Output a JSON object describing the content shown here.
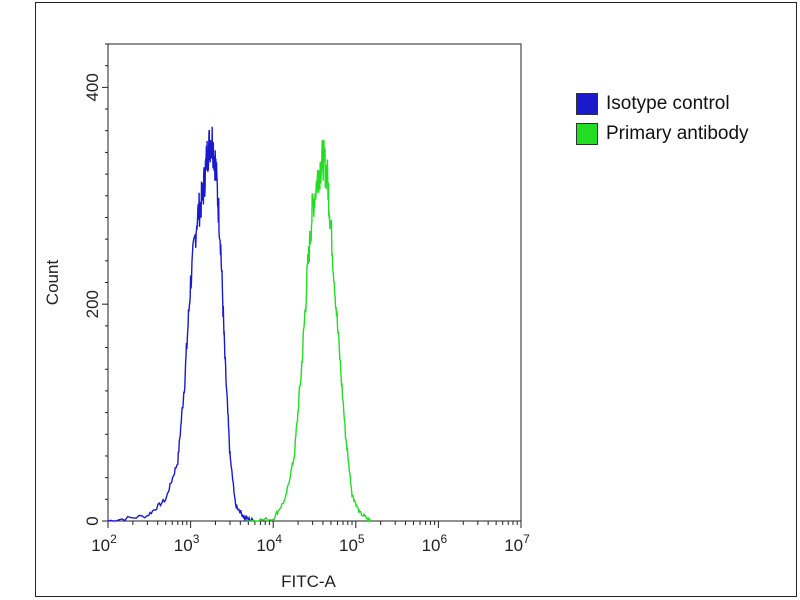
{
  "chart_data": {
    "type": "line",
    "title": "",
    "xlabel": "FITC-A",
    "ylabel": "Count",
    "xscale": "log",
    "xlim": [
      100,
      10000000
    ],
    "ylim": [
      0,
      440
    ],
    "x_ticks": [
      {
        "base": "10",
        "exp": "2"
      },
      {
        "base": "10",
        "exp": "3"
      },
      {
        "base": "10",
        "exp": "4"
      },
      {
        "base": "10",
        "exp": "5"
      },
      {
        "base": "10",
        "exp": "6"
      },
      {
        "base": "10",
        "exp": "7"
      }
    ],
    "y_ticks": [
      "0",
      "200",
      "400"
    ],
    "y_tick_values": [
      0,
      200,
      400
    ],
    "grid": false,
    "legend_position": "right",
    "series": [
      {
        "name": "Isotype control",
        "color": "#1a1acc",
        "points": [
          [
            100,
            0
          ],
          [
            300,
            5
          ],
          [
            500,
            20
          ],
          [
            700,
            55
          ],
          [
            850,
            130
          ],
          [
            1000,
            220
          ],
          [
            1200,
            280
          ],
          [
            1400,
            300
          ],
          [
            1600,
            340
          ],
          [
            1800,
            355
          ],
          [
            2000,
            330
          ],
          [
            2300,
            260
          ],
          [
            2600,
            150
          ],
          [
            3000,
            60
          ],
          [
            3500,
            15
          ],
          [
            4500,
            3
          ],
          [
            6000,
            0
          ]
        ]
      },
      {
        "name": "Primary antibody",
        "color": "#22dd22",
        "points": [
          [
            5000,
            0
          ],
          [
            10000,
            2
          ],
          [
            14000,
            20
          ],
          [
            18000,
            60
          ],
          [
            22000,
            140
          ],
          [
            26000,
            230
          ],
          [
            30000,
            290
          ],
          [
            35000,
            320
          ],
          [
            40000,
            335
          ],
          [
            45000,
            320
          ],
          [
            50000,
            270
          ],
          [
            60000,
            180
          ],
          [
            75000,
            80
          ],
          [
            90000,
            25
          ],
          [
            110000,
            8
          ],
          [
            150000,
            0
          ]
        ]
      }
    ]
  }
}
